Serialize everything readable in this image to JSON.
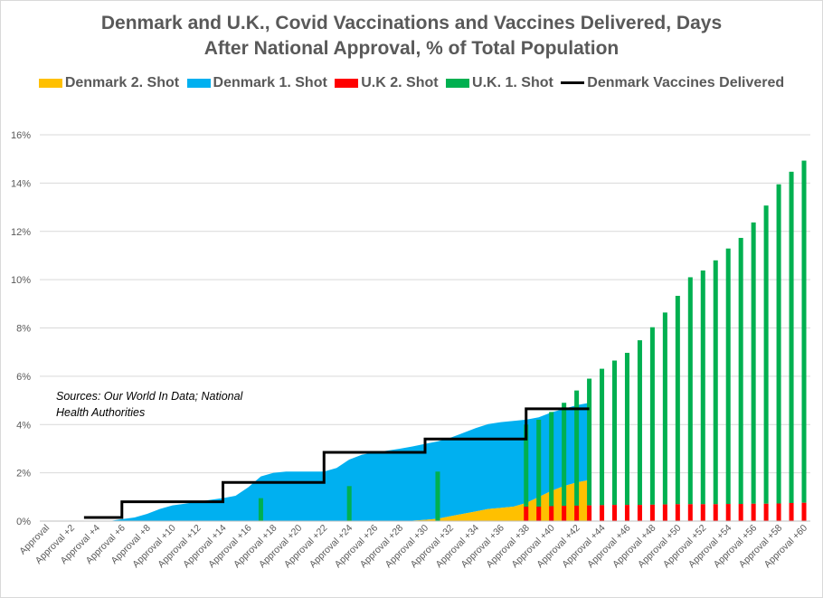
{
  "chart_data": {
    "type": "bar",
    "title_lines": [
      "Denmark and U.K., Covid Vaccinations and Vaccines Delivered, Days",
      "After National Approval, % of Total Population"
    ],
    "annotation_lines": [
      "Sources: Our World In Data; National",
      "Health Authorities"
    ],
    "xlabel": "",
    "ylabel": "",
    "ylim": [
      0,
      16
    ],
    "y_ticks": [
      "0%",
      "2%",
      "4%",
      "6%",
      "8%",
      "10%",
      "12%",
      "14%",
      "16%"
    ],
    "x_tick_labels": [
      "Approval",
      "Approval +2",
      "Approval +4",
      "Approval +6",
      "Approval +8",
      "Approval +10",
      "Approval +12",
      "Approval +14",
      "Approval +16",
      "Approval +18",
      "Approval +20",
      "Approval +22",
      "Approval +24",
      "Approval +26",
      "Approval +28",
      "Approval +30",
      "Approval +32",
      "Approval +34",
      "Approval +36",
      "Approval +38",
      "Approval +40",
      "Approval +42",
      "Approval +44",
      "Approval +46",
      "Approval +48",
      "Approval +50",
      "Approval +52",
      "Approval +54",
      "Approval +56",
      "Approval +58",
      "Approval +60"
    ],
    "legend": [
      {
        "label": "Denmark 2. Shot",
        "color": "#FFC000",
        "kind": "area"
      },
      {
        "label": "Denmark 1. Shot",
        "color": "#00B0F0",
        "kind": "area"
      },
      {
        "label": "U.K 2. Shot",
        "color": "#FF0000",
        "kind": "bar"
      },
      {
        "label": "U.K. 1. Shot",
        "color": "#00B050",
        "kind": "bar"
      },
      {
        "label": "Denmark Vaccines Delivered",
        "color": "#000000",
        "kind": "line"
      }
    ],
    "series": [
      {
        "name": "Denmark 2. Shot",
        "type": "stacked-area",
        "x": [
          0,
          28,
          29,
          30,
          31,
          32,
          33,
          34,
          35,
          36,
          37,
          38,
          39,
          40,
          41,
          42,
          43
        ],
        "values": [
          0,
          0,
          0.02,
          0.05,
          0.1,
          0.2,
          0.3,
          0.4,
          0.5,
          0.55,
          0.6,
          0.75,
          1.0,
          1.25,
          1.45,
          1.6,
          1.7
        ]
      },
      {
        "name": "Denmark 1. Shot",
        "type": "stacked-area",
        "x": [
          0,
          5,
          6,
          7,
          8,
          9,
          10,
          11,
          12,
          13,
          14,
          15,
          16,
          17,
          18,
          19,
          20,
          21,
          22,
          23,
          24,
          25,
          26,
          27,
          28,
          29,
          30,
          31,
          32,
          33,
          34,
          35,
          36,
          37,
          38,
          39,
          40,
          41,
          42,
          43
        ],
        "values": [
          0,
          0,
          0.08,
          0.15,
          0.3,
          0.5,
          0.65,
          0.72,
          0.8,
          0.88,
          0.95,
          1.05,
          1.4,
          1.85,
          2.0,
          2.05,
          2.05,
          2.05,
          2.05,
          2.2,
          2.55,
          2.75,
          2.85,
          2.92,
          3.0,
          3.07,
          3.15,
          3.2,
          3.25,
          3.35,
          3.45,
          3.52,
          3.55,
          3.55,
          3.45,
          3.3,
          3.25,
          3.2,
          3.2,
          3.2
        ]
      },
      {
        "name": "U.K 2. Shot",
        "type": "bar",
        "x": [
          38,
          39,
          40,
          41,
          42,
          43,
          44,
          45,
          46,
          47,
          48,
          49,
          50,
          51,
          52,
          53,
          54,
          55,
          56,
          57,
          58,
          59,
          60
        ],
        "values": [
          0.6,
          0.6,
          0.62,
          0.63,
          0.64,
          0.65,
          0.66,
          0.67,
          0.67,
          0.67,
          0.68,
          0.69,
          0.7,
          0.7,
          0.7,
          0.7,
          0.71,
          0.71,
          0.72,
          0.72,
          0.73,
          0.75,
          0.76
        ]
      },
      {
        "name": "U.K. 1. Shot",
        "type": "bar",
        "x": [
          17,
          24,
          31,
          38,
          39,
          40,
          41,
          42,
          43,
          44,
          45,
          46,
          47,
          48,
          49,
          50,
          51,
          52,
          53,
          54,
          55,
          56,
          57,
          58,
          59,
          60
        ],
        "values": [
          0.95,
          1.45,
          2.05,
          3.4,
          3.6,
          3.9,
          4.27,
          4.77,
          5.25,
          5.65,
          5.98,
          6.3,
          6.82,
          7.35,
          7.95,
          8.63,
          9.4,
          9.68,
          10.1,
          10.58,
          11.02,
          11.65,
          12.35,
          13.22,
          13.72,
          14.17
        ]
      },
      {
        "name": "Denmark Vaccines Delivered",
        "type": "step-line",
        "x": [
          3,
          4,
          5,
          6,
          7,
          8,
          9,
          10,
          11,
          12,
          13,
          14,
          15,
          16,
          17,
          18,
          19,
          20,
          21,
          22,
          23,
          24,
          25,
          26,
          27,
          28,
          29,
          30,
          31,
          32,
          33,
          34,
          35,
          36,
          37,
          38,
          39,
          40,
          41,
          42,
          43
        ],
        "values": [
          0.15,
          0.15,
          0.15,
          0.8,
          0.8,
          0.8,
          0.8,
          0.8,
          0.8,
          0.8,
          0.8,
          1.6,
          1.6,
          1.6,
          1.6,
          1.6,
          1.6,
          1.6,
          1.6,
          2.85,
          2.85,
          2.85,
          2.85,
          2.85,
          2.85,
          2.85,
          2.85,
          3.4,
          3.4,
          3.4,
          3.4,
          3.4,
          3.4,
          3.4,
          3.4,
          4.65,
          4.65,
          4.65,
          4.65,
          4.65,
          4.65
        ]
      }
    ],
    "x_range": [
      0,
      61
    ],
    "grid": true
  }
}
